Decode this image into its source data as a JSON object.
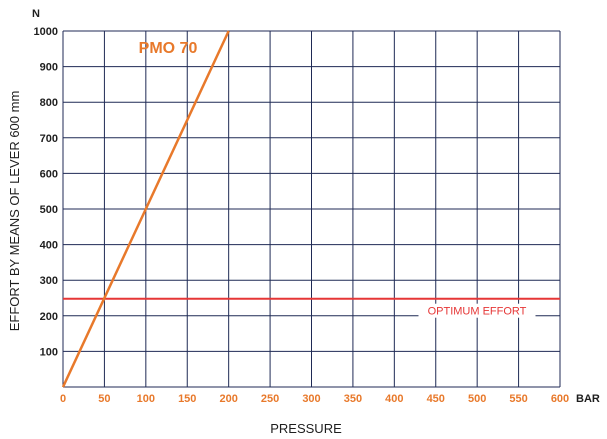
{
  "chart_data": {
    "type": "line",
    "xlabel": "PRESSURE",
    "ylabel": "EFFORT BY MEANS OF LEVER 600 mm",
    "x_unit": "BAR",
    "y_unit": "N",
    "xlim": [
      0,
      600
    ],
    "ylim": [
      0,
      1000
    ],
    "x_ticks": [
      "0",
      "50",
      "100",
      "150",
      "200",
      "250",
      "300",
      "350",
      "400",
      "450",
      "500",
      "550",
      "600"
    ],
    "y_ticks": [
      "100",
      "200",
      "300",
      "400",
      "500",
      "600",
      "700",
      "800",
      "900",
      "1000"
    ],
    "grid": true,
    "series": [
      {
        "name": "PMO 70",
        "color": "#e8792b",
        "x": [
          0,
          200
        ],
        "y": [
          0,
          1000
        ]
      }
    ],
    "reference_lines": [
      {
        "label": "OPTIMUM EFFORT",
        "y": 248,
        "color": "#e63636"
      }
    ]
  },
  "colors": {
    "grid": "#1f2a55",
    "tick_x": "#e8792b",
    "text": "#1e1e1e"
  }
}
